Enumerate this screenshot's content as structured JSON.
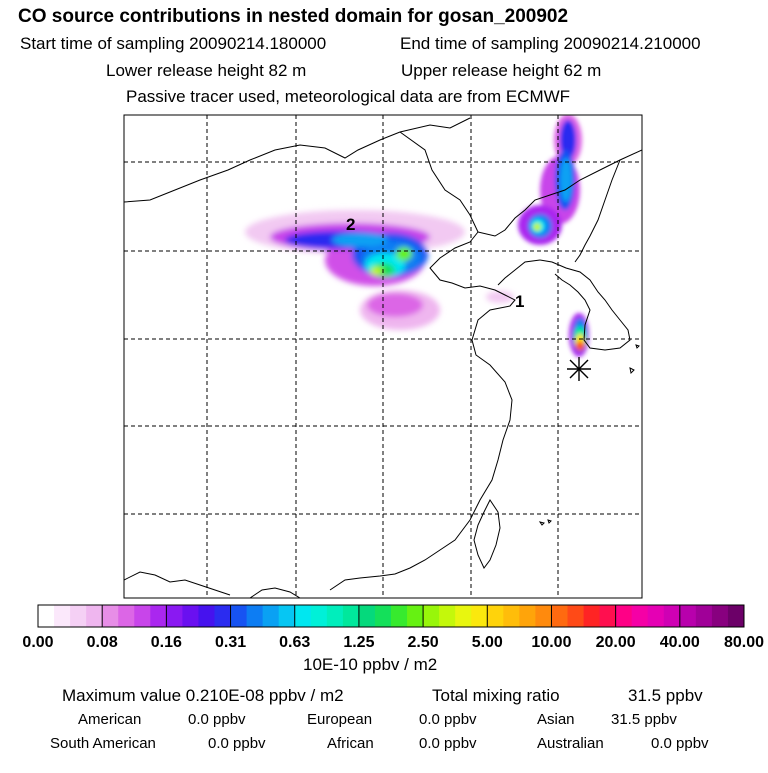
{
  "header": {
    "title": "CO  source contributions in nested domain for gosan_200902",
    "start_label": "Start time of sampling 20090214.180000",
    "end_label": "End time of sampling 20090214.210000",
    "lower_label": "Lower release height   82 m",
    "upper_label": "Upper release height   62 m",
    "tracer_line": "Passive tracer used, meteorological data are from ECMWF"
  },
  "map": {
    "labels": [
      "1",
      "2"
    ]
  },
  "chart_data": {
    "type": "heatmap",
    "colorbar": {
      "unit_label": "10E-10 ppbv / m2",
      "ticks": [
        "0.00",
        "0.08",
        "0.16",
        "0.31",
        "0.63",
        "1.25",
        "2.50",
        "5.00",
        "10.00",
        "20.00",
        "40.00",
        "80.00"
      ],
      "colors": [
        "#ffffff",
        "#fbe8fb",
        "#f5d0f5",
        "#efb6ef",
        "#e78ee7",
        "#dc66e6",
        "#c845ea",
        "#aa27ef",
        "#8a19f2",
        "#6a10f0",
        "#4612ee",
        "#2b2cf0",
        "#1753f2",
        "#0d7df3",
        "#0aa1f3",
        "#06c6f3",
        "#00e7f0",
        "#00f0d8",
        "#00eebc",
        "#00e89c",
        "#05d97c",
        "#14e05a",
        "#37ea2e",
        "#66f112",
        "#98f60a",
        "#c4f80b",
        "#e8f60f",
        "#fbe80d",
        "#ffd30b",
        "#ffbd0a",
        "#ffa40a",
        "#ff8a0d",
        "#ff6a10",
        "#ff4a17",
        "#ff2424",
        "#ff0f4f",
        "#ff0086",
        "#f500a6",
        "#e500b4",
        "#cf00b4",
        "#b800ac",
        "#a00098",
        "#88007f",
        "#6c0068"
      ]
    },
    "receptor_marker": "gosan",
    "max_value_label": "Maximum value  0.210E-08 ppbv / m2",
    "total_label": "Total mixing ratio",
    "total_value": "31.5 ppbv",
    "regions": [
      {
        "name": "American",
        "value": "0.0 ppbv"
      },
      {
        "name": "European",
        "value": "0.0 ppbv"
      },
      {
        "name": "Asian",
        "value": "31.5 ppbv"
      },
      {
        "name": "South American",
        "value": "0.0 ppbv"
      },
      {
        "name": "African",
        "value": "0.0 ppbv"
      },
      {
        "name": "Australian",
        "value": "0.0 ppbv"
      }
    ]
  }
}
